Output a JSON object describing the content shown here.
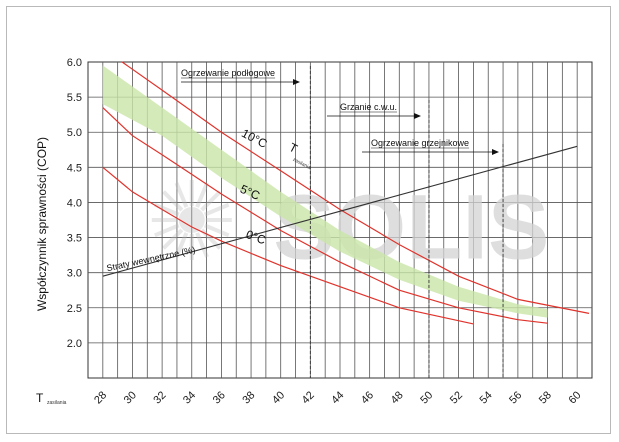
{
  "chart_data": {
    "type": "line",
    "ylabel": "Współczynnik sprawności (COP)",
    "xlabel_prefix": "T",
    "xlabel_sub": "zasilania",
    "x_ticks": [
      28,
      30,
      32,
      34,
      36,
      38,
      40,
      42,
      44,
      46,
      48,
      50,
      52,
      54,
      56,
      58,
      60
    ],
    "y_ticks": [
      "2.0",
      "2.5",
      "3.0",
      "3.5",
      "4.0",
      "4.5",
      "5.0",
      "5.5",
      "6.0"
    ],
    "xlim": [
      27,
      61
    ],
    "ylim": [
      1.5,
      6.0
    ],
    "grid": true,
    "watermark_text": "SOLIS",
    "series": [
      {
        "name": "10°C",
        "label_sub": "T",
        "label_sub2": "zasilania",
        "color": "#e0332c",
        "x": [
          29.3,
          32,
          36,
          40,
          44,
          48,
          52,
          56,
          60.8
        ],
        "y": [
          6.0,
          5.6,
          5.0,
          4.45,
          3.9,
          3.4,
          2.95,
          2.62,
          2.42
        ]
      },
      {
        "name": "5°C",
        "color": "#e0332c",
        "x": [
          28,
          30,
          32,
          34,
          36,
          40,
          44,
          48,
          52,
          56,
          58
        ],
        "y": [
          5.35,
          4.95,
          4.68,
          4.4,
          4.12,
          3.6,
          3.15,
          2.75,
          2.5,
          2.33,
          2.28
        ]
      },
      {
        "name": "0°C",
        "color": "#e0332c",
        "x": [
          28,
          30,
          32,
          34,
          36,
          40,
          44,
          48,
          53
        ],
        "y": [
          4.5,
          4.15,
          3.9,
          3.65,
          3.45,
          3.1,
          2.8,
          2.5,
          2.27
        ]
      },
      {
        "name": "Straty wewnętrzne (%)",
        "color": "#333333",
        "x": [
          28,
          60
        ],
        "y": [
          2.95,
          4.8
        ]
      }
    ],
    "band": {
      "color": "#c9e6a8",
      "x": [
        28,
        32,
        36,
        40,
        44,
        48,
        52,
        56,
        58
      ],
      "y_low": [
        5.4,
        4.95,
        4.35,
        3.8,
        3.3,
        2.9,
        2.6,
        2.42,
        2.36
      ],
      "y_high": [
        5.95,
        5.35,
        4.75,
        4.15,
        3.6,
        3.15,
        2.8,
        2.55,
        2.48
      ]
    },
    "reference_lines": [
      {
        "x": 42,
        "label": "Ogrzewanie podłogowe",
        "color": "#333333"
      },
      {
        "x": 50,
        "label": "Grzanie c.w.u.",
        "color": "#333333"
      },
      {
        "x": 55,
        "label": "Ogrzewanie grzejnikowe",
        "color": "#333333"
      }
    ],
    "straty_label": "Straty wewnętrzne (%)"
  }
}
